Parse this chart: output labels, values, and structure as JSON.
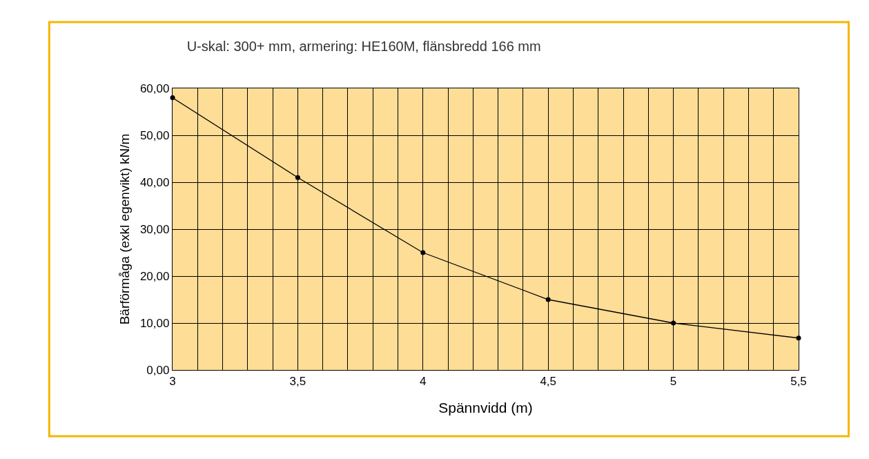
{
  "chart_data": {
    "type": "line",
    "title": "U-skal: 300+ mm, armering: HE160M, flänsbredd 166 mm",
    "xlabel": "Spännvidd (m)",
    "ylabel": "Bärförmåga (exkl egenvikt) kN/m",
    "x": [
      3,
      3.5,
      4,
      4.5,
      5,
      5.5
    ],
    "series": [
      {
        "color": "#000000",
        "values": [
          58.0,
          41.0,
          25.0,
          15.0,
          10.0,
          6.8
        ]
      }
    ],
    "xlim": [
      3,
      5.5
    ],
    "xticks": [
      {
        "value": 3,
        "label": "3"
      },
      {
        "value": 3.1,
        "label": null
      },
      {
        "value": 3.2,
        "label": null
      },
      {
        "value": 3.3,
        "label": null
      },
      {
        "value": 3.4,
        "label": null
      },
      {
        "value": 3.5,
        "label": "3,5"
      },
      {
        "value": 3.6,
        "label": null
      },
      {
        "value": 3.7,
        "label": null
      },
      {
        "value": 3.8,
        "label": null
      },
      {
        "value": 3.9,
        "label": null
      },
      {
        "value": 4,
        "label": "4"
      },
      {
        "value": 4.1,
        "label": null
      },
      {
        "value": 4.2,
        "label": null
      },
      {
        "value": 4.3,
        "label": null
      },
      {
        "value": 4.4,
        "label": null
      },
      {
        "value": 4.5,
        "label": "4,5"
      },
      {
        "value": 4.6,
        "label": null
      },
      {
        "value": 4.7,
        "label": null
      },
      {
        "value": 4.8,
        "label": null
      },
      {
        "value": 4.9,
        "label": null
      },
      {
        "value": 5,
        "label": "5"
      },
      {
        "value": 5.1,
        "label": null
      },
      {
        "value": 5.2,
        "label": null
      },
      {
        "value": 5.3,
        "label": null
      },
      {
        "value": 5.4,
        "label": null
      },
      {
        "value": 5.5,
        "label": "5,5"
      }
    ],
    "ylim": [
      0,
      60
    ],
    "yticks": [
      {
        "value": 0,
        "label": "0,00"
      },
      {
        "value": 10,
        "label": "10,00"
      },
      {
        "value": 20,
        "label": "20,00"
      },
      {
        "value": 30,
        "label": "30,00"
      },
      {
        "value": 40,
        "label": "40,00"
      },
      {
        "value": 50,
        "label": "50,00"
      },
      {
        "value": 60,
        "label": "60,00"
      }
    ],
    "grid": true,
    "marker": "circle",
    "line_style": "solid"
  }
}
